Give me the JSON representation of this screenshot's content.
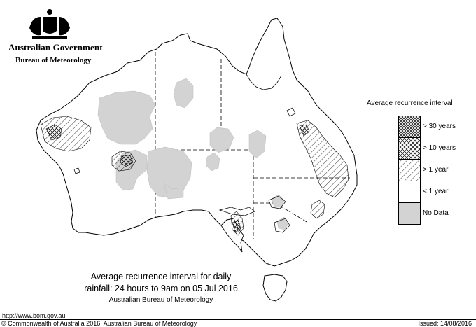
{
  "header": {
    "government": "Australian Government",
    "bureau": "Bureau of Meteorology",
    "crest_icon": "commonwealth-coat-of-arms"
  },
  "legend": {
    "title": "Average recurrence interval",
    "items": [
      {
        "label": "> 30 years",
        "pattern": "crosshatch-dense"
      },
      {
        "label": "> 10 years",
        "pattern": "crosshatch"
      },
      {
        "label": "> 1 year",
        "pattern": "diagonal-hatch"
      },
      {
        "label": "< 1 year",
        "pattern": "blank"
      },
      {
        "label": "No Data",
        "pattern": "grey-fill"
      }
    ]
  },
  "caption": {
    "line1": "Average recurrence interval for daily",
    "line2": "rainfall: 24 hours to 9am on 05 Jul 2016",
    "line3": "Australian Bureau of Meteorology"
  },
  "footer": {
    "url": "http://www.bom.gov.au",
    "copyright": "© Commonwealth of Australia 2016, Australian Bureau of Meteorology",
    "issued": "Issued: 14/08/2016"
  },
  "colors": {
    "no_data": "#d3d3d3",
    "outline": "#000000",
    "background": "#ffffff"
  }
}
